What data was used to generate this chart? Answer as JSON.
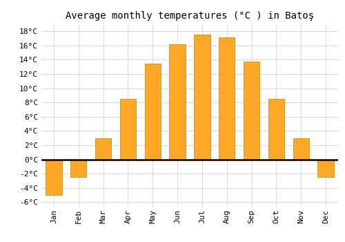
{
  "title": "Average monthly temperatures (°C ) in Batoş",
  "months": [
    "Jan",
    "Feb",
    "Mar",
    "Apr",
    "May",
    "Jun",
    "Jul",
    "Aug",
    "Sep",
    "Oct",
    "Nov",
    "Dec"
  ],
  "temperatures": [
    -5.0,
    -2.5,
    3.0,
    8.5,
    13.5,
    16.2,
    17.5,
    17.2,
    13.8,
    8.5,
    3.0,
    -2.5
  ],
  "bar_color": "#FFA726",
  "bar_edge_color": "#B8860B",
  "background_color": "#FFFFFF",
  "grid_color": "#CCCCCC",
  "ylim": [
    -6.5,
    19.0
  ],
  "yticks": [
    -6,
    -4,
    -2,
    0,
    2,
    4,
    6,
    8,
    10,
    12,
    14,
    16,
    18
  ],
  "zero_line_color": "#000000",
  "title_fontsize": 10,
  "tick_fontsize": 8,
  "font_family": "monospace"
}
